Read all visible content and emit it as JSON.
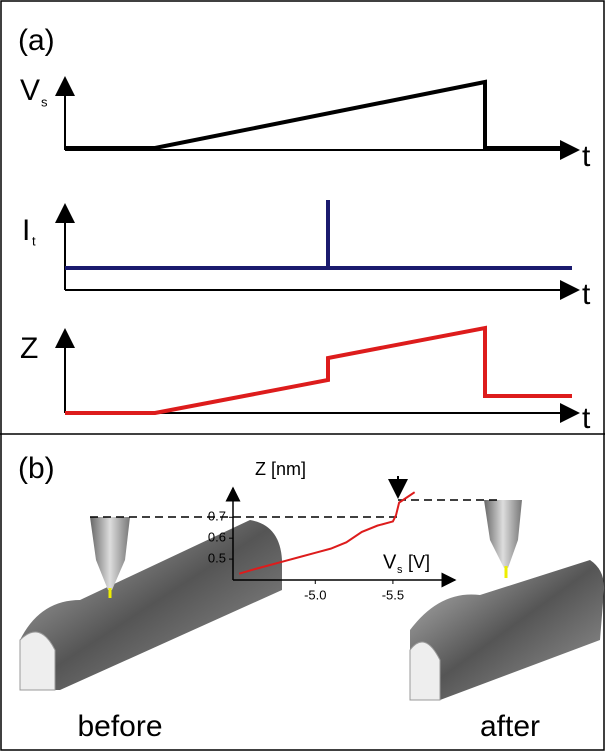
{
  "panel_a": {
    "label": "(a)",
    "vs_axis": {
      "main": "V",
      "sub": "s",
      "x_label": "t"
    },
    "it_axis": {
      "main": "I",
      "sub": "t",
      "x_label": "t"
    },
    "z_axis": {
      "main": "Z",
      "x_label": "t"
    }
  },
  "panel_b": {
    "label": "(b)",
    "before": "before",
    "after": "after"
  },
  "chart_data": {
    "type": "line",
    "y_label": "Z [nm]",
    "x_label": {
      "main": "V",
      "sub": "s",
      "unit": "[V]"
    },
    "color": "#dd1c1c",
    "x": [
      -4.51,
      -4.6,
      -4.7,
      -4.8,
      -4.9,
      -5.0,
      -5.1,
      -5.2,
      -5.3,
      -5.4,
      -5.5,
      -5.52,
      -5.54,
      -5.6,
      -5.64
    ],
    "values": [
      0.43,
      0.45,
      0.47,
      0.49,
      0.51,
      0.53,
      0.55,
      0.58,
      0.63,
      0.66,
      0.68,
      0.71,
      0.77,
      0.8,
      0.82
    ],
    "xlim": [
      -4.47,
      -5.9
    ],
    "ylim": [
      0.4,
      0.84
    ],
    "xticks": [
      {
        "value": -5,
        "label": "-5.0"
      },
      -5.5
    ],
    "yticks": [
      0.5,
      0.6,
      0.7
    ]
  }
}
